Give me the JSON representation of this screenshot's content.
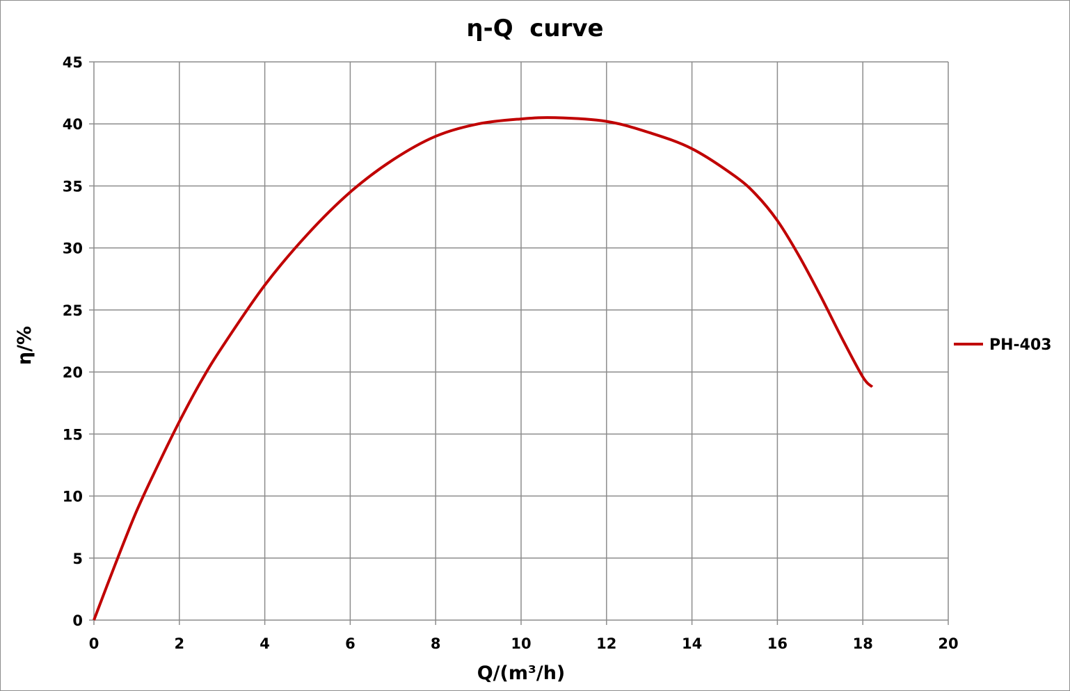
{
  "chart_data": {
    "type": "line",
    "title": "η-Q  curve",
    "xlabel": "Q/(m³/h)",
    "ylabel": "η/%",
    "xlim": [
      0,
      20
    ],
    "ylim": [
      0,
      45
    ],
    "x_ticks": [
      "0",
      "2",
      "4",
      "6",
      "8",
      "10",
      "12",
      "14",
      "16",
      "18",
      "20"
    ],
    "y_ticks": [
      "0",
      "5",
      "10",
      "15",
      "20",
      "25",
      "30",
      "35",
      "40",
      "45"
    ],
    "grid": true,
    "legend_position": "right",
    "series": [
      {
        "name": "PH-403",
        "color": "#c00000",
        "x": [
          0,
          0.5,
          1,
          1.5,
          2,
          2.5,
          3,
          4,
          5,
          6,
          7,
          8,
          9,
          10,
          10.8,
          12,
          13,
          14,
          15,
          15.5,
          16,
          16.5,
          17,
          17.5,
          18,
          18.22
        ],
        "y": [
          0,
          4.5,
          8.8,
          12.5,
          16,
          19.2,
          22,
          27,
          31.1,
          34.5,
          37.1,
          39,
          40,
          40.4,
          40.5,
          40.2,
          39.3,
          38,
          35.8,
          34.3,
          32.2,
          29.4,
          26.2,
          22.8,
          19.6,
          18.8
        ]
      }
    ]
  }
}
